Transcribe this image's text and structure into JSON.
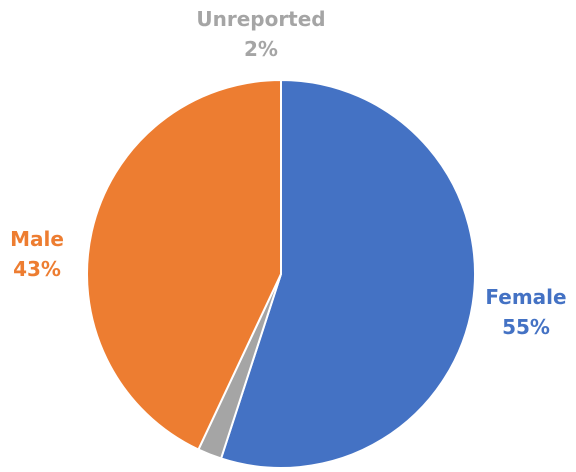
{
  "chart_data": {
    "type": "pie",
    "slices": [
      {
        "label": "Female",
        "value": 55,
        "value_label": "55%",
        "color": "#4472C4"
      },
      {
        "label": "Unreported",
        "value": 2,
        "value_label": "2%",
        "color": "#A5A5A5"
      },
      {
        "label": "Male",
        "value": 43,
        "value_label": "43%",
        "color": "#ED7D31"
      }
    ],
    "start_angle": "12 o'clock",
    "direction": "clockwise",
    "label_position": "outside"
  }
}
